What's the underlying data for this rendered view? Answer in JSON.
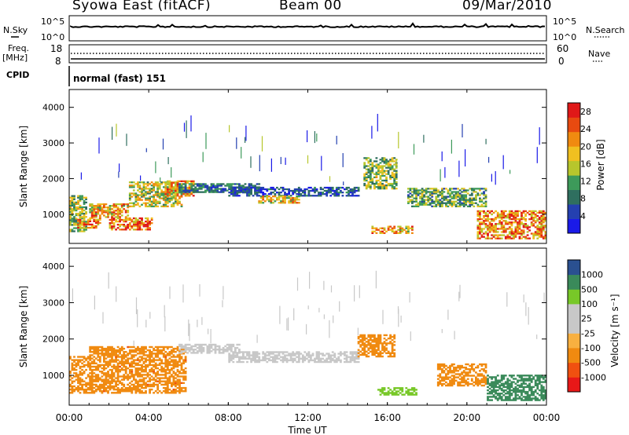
{
  "header": {
    "title": "Syowa East (fitACF)",
    "beam": "Beam 00",
    "date": "09/Mar/2010"
  },
  "left_labels": {
    "nsky": "N.Sky",
    "freq": "Freq.",
    "mhz": "[MHz]",
    "cpid": "CPID"
  },
  "right_labels": {
    "nsearch": "N.Search",
    "nave": "Nave"
  },
  "cpid_text": "normal (fast) 151",
  "axis_text": {
    "noise_top": "10^5",
    "noise_bottom": "10^0",
    "freq_top": "18",
    "freq_bottom": "8",
    "nave_top": "60",
    "nave_bottom": "0",
    "xlabel": "Time UT",
    "ylabel": "Slant Range [km]",
    "power_label": "Power [dB]",
    "velocity_label": "Velocity [m s⁻¹]"
  },
  "colors": {
    "power_scale": [
      "#1a1ae8",
      "#2440b0",
      "#2f6f5f",
      "#3d9a5a",
      "#b7c62c",
      "#f0c020",
      "#f08a10",
      "#e84a10",
      "#e01818"
    ],
    "velocity_scale": [
      "#e81818",
      "#f05010",
      "#f08a10",
      "#f8b040",
      "#c8c8c8",
      "#c8c8c8",
      "#78c828",
      "#3a8a5a",
      "#2a5090",
      "#1a2aa8"
    ]
  },
  "chart_data": [
    {
      "type": "heatmap",
      "name": "power",
      "xlabel": "Time UT",
      "ylabel": "Slant Range [km]",
      "xlim": [
        0,
        24
      ],
      "ylim": [
        180,
        4500
      ],
      "x_ticks": [
        "00:00",
        "04:00",
        "08:00",
        "12:00",
        "16:00",
        "20:00",
        "00:00"
      ],
      "y_ticks": [
        1000,
        2000,
        3000,
        4000
      ],
      "colorbar_label": "Power [dB]",
      "colorbar_ticks": [
        4,
        8,
        12,
        16,
        20,
        24,
        28
      ],
      "colorbar_range": [
        0,
        30
      ],
      "bands": [
        {
          "t0": 0.0,
          "t1": 0.8,
          "r0": 500,
          "r1": 1500,
          "value": 14
        },
        {
          "t0": 0.4,
          "t1": 1.6,
          "r0": 600,
          "r1": 900,
          "value": 22
        },
        {
          "t0": 1.0,
          "t1": 3.0,
          "r0": 900,
          "r1": 1300,
          "value": 20
        },
        {
          "t0": 2.0,
          "t1": 4.2,
          "r0": 550,
          "r1": 900,
          "value": 24
        },
        {
          "t0": 3.0,
          "t1": 5.6,
          "r0": 1200,
          "r1": 1900,
          "value": 16
        },
        {
          "t0": 4.8,
          "t1": 6.2,
          "r0": 1500,
          "r1": 1950,
          "value": 20
        },
        {
          "t0": 5.5,
          "t1": 9.5,
          "r0": 1600,
          "r1": 1850,
          "value": 8
        },
        {
          "t0": 8.0,
          "t1": 14.5,
          "r0": 1500,
          "r1": 1750,
          "value": 6
        },
        {
          "t0": 9.5,
          "t1": 11.5,
          "r0": 1300,
          "r1": 1500,
          "value": 18
        },
        {
          "t0": 14.8,
          "t1": 16.5,
          "r0": 1700,
          "r1": 2600,
          "value": 14
        },
        {
          "t0": 15.2,
          "t1": 17.3,
          "r0": 450,
          "r1": 650,
          "value": 20
        },
        {
          "t0": 17.0,
          "t1": 21.0,
          "r0": 1200,
          "r1": 1700,
          "value": 12
        },
        {
          "t0": 20.5,
          "t1": 24.0,
          "r0": 300,
          "r1": 1100,
          "value": 22
        }
      ]
    },
    {
      "type": "heatmap",
      "name": "velocity",
      "xlabel": "Time UT",
      "ylabel": "Slant Range [km]",
      "xlim": [
        0,
        24
      ],
      "ylim": [
        180,
        4500
      ],
      "x_ticks": [
        "00:00",
        "04:00",
        "08:00",
        "12:00",
        "16:00",
        "20:00",
        "00:00"
      ],
      "y_ticks": [
        1000,
        2000,
        3000,
        4000
      ],
      "colorbar_label": "Velocity [m s⁻¹]",
      "colorbar_ticks": [
        -1000,
        -500,
        -100,
        -25,
        25,
        100,
        500,
        1000
      ],
      "bands": [
        {
          "t0": 0.0,
          "t1": 1.0,
          "r0": 500,
          "r1": 1500,
          "value": -300
        },
        {
          "t0": 1.0,
          "t1": 5.8,
          "r0": 500,
          "r1": 1800,
          "value": -400
        },
        {
          "t0": 5.5,
          "t1": 8.5,
          "r0": 1600,
          "r1": 1850,
          "value": 10
        },
        {
          "t0": 8.0,
          "t1": 14.5,
          "r0": 1350,
          "r1": 1650,
          "value": 0
        },
        {
          "t0": 14.5,
          "t1": 16.3,
          "r0": 1500,
          "r1": 2100,
          "value": -150
        },
        {
          "t0": 15.5,
          "t1": 17.5,
          "r0": 450,
          "r1": 650,
          "value": 60
        },
        {
          "t0": 18.5,
          "t1": 21.0,
          "r0": 700,
          "r1": 1300,
          "value": -250
        },
        {
          "t0": 21.0,
          "t1": 24.0,
          "r0": 300,
          "r1": 1000,
          "value": 300
        }
      ]
    }
  ]
}
